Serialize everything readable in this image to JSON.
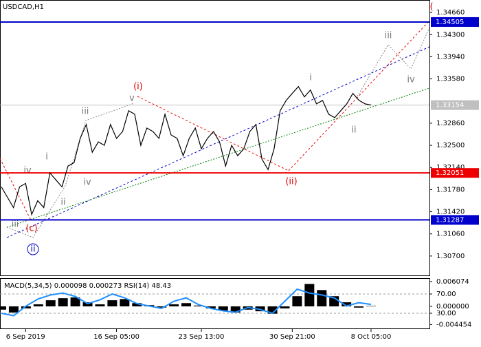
{
  "chart_data": [
    {
      "type": "line",
      "title": "USDCAD,H1",
      "color": "#000000",
      "categories": [
        null,
        null,
        null,
        null,
        "6 Sep 2019",
        null,
        null,
        null,
        null,
        null,
        null,
        null,
        null,
        null,
        null,
        null,
        null,
        null,
        null,
        "16 Sep 05:00",
        null,
        null,
        null,
        null,
        null,
        null,
        null,
        null,
        null,
        null,
        null,
        null,
        null,
        "23 Sep 13:00",
        null,
        null,
        null,
        null,
        null,
        null,
        null,
        null,
        null,
        null,
        null,
        null,
        null,
        null,
        "30 Sep 21:00",
        null,
        null,
        null,
        null,
        null,
        null,
        null,
        null,
        null,
        null,
        null,
        null,
        "8 Oct 05:00"
      ],
      "values": [
        1.31825,
        1.31656,
        1.31488,
        1.31825,
        1.31881,
        1.31375,
        1.316,
        1.31488,
        1.3205,
        1.31938,
        1.31825,
        1.32163,
        1.32219,
        1.32613,
        1.32838,
        1.32388,
        1.32556,
        1.325,
        1.32838,
        1.32613,
        1.32725,
        1.33063,
        1.33006,
        1.325,
        1.32781,
        1.32725,
        1.32613,
        1.33006,
        1.32669,
        1.32613,
        1.32331,
        1.32613,
        1.32781,
        1.32444,
        1.32613,
        1.32725,
        1.32556,
        1.32163,
        1.325,
        1.32331,
        1.32444,
        1.32725,
        1.32838,
        1.32275,
        1.32106,
        1.32444,
        1.33063,
        1.33231,
        1.33344,
        1.33456,
        1.33288,
        1.334,
        1.33175,
        1.33231,
        1.33006,
        1.3295,
        1.33063,
        1.33175,
        1.33344,
        1.33231,
        1.33175,
        1.33154
      ],
      "ylim": [
        1.30385,
        1.34818
      ],
      "yticks": [
        {
          "value": 1.3466,
          "label": "1.34660"
        },
        {
          "value": 1.343,
          "label": "1.34300"
        },
        {
          "value": 1.3394,
          "label": "1.33940"
        },
        {
          "value": 1.3358,
          "label": "1.33580"
        },
        {
          "value": 1.3286,
          "label": "1.32860"
        },
        {
          "value": 1.325,
          "label": "1.32500"
        },
        {
          "value": 1.3214,
          "label": "1.32140"
        },
        {
          "value": 1.3178,
          "label": "1.31780"
        },
        {
          "value": 1.3142,
          "label": "1.31420"
        },
        {
          "value": 1.3106,
          "label": "1.31060"
        },
        {
          "value": 1.307,
          "label": "1.30700"
        }
      ],
      "levels": [
        {
          "value": 1.34505,
          "color": "#0000cc"
        },
        {
          "value": 1.33154,
          "color": "#c0c0c0"
        },
        {
          "value": 1.32051,
          "color": "#ee0000"
        },
        {
          "value": 1.31287,
          "color": "#0000cc"
        }
      ],
      "annotations": [
        "(i)",
        "v",
        "iii",
        "i",
        "iv",
        "ii",
        "iv",
        "iii",
        "(c)",
        "ii",
        "(ii)",
        "i",
        "ii",
        "iii",
        "iv",
        "("
      ]
    },
    {
      "type": "macd",
      "title": "MACD(5,34,5) 0.000098 0.000273 RSI(14) 48.43",
      "series": [
        {
          "color": "#000000",
          "values": [
            -0.0008,
            -0.0015,
            -0.0005,
            0.0005,
            0.0015,
            0.002,
            0.0022,
            0.001,
            0.0005,
            0.0015,
            0.0018,
            0.0008,
            0.0003,
            -0.0003,
            0.0005,
            0.0008,
            0.0002,
            -0.0005,
            -0.001,
            -0.0015,
            -0.0008,
            -0.0012,
            -0.0018,
            -0.0005,
            0.0025,
            0.0055,
            0.004,
            0.0025,
            0.001,
            -0.0003,
            9.8e-05
          ]
        },
        {
          "color": "#1e90ff",
          "axis": "y2",
          "values": [
            30,
            25,
            45,
            60,
            68,
            72,
            65,
            50,
            58,
            70,
            62,
            50,
            45,
            40,
            55,
            62,
            48,
            40,
            35,
            32,
            42,
            38,
            30,
            55,
            80,
            72,
            68,
            62,
            45,
            52,
            48.43
          ]
        }
      ],
      "ylim": [
        -0.0054,
        0.00675
      ],
      "yticks": [
        0.006074,
        {
          "value": 0,
          "label": "0.000000"
        },
        -0.004454
      ],
      "y2lim": [
        -1.43,
        101.43
      ],
      "y2ticks": [
        {
          "value": 70,
          "label": "70.00"
        },
        {
          "value": 30,
          "label": "30.00"
        }
      ]
    }
  ]
}
